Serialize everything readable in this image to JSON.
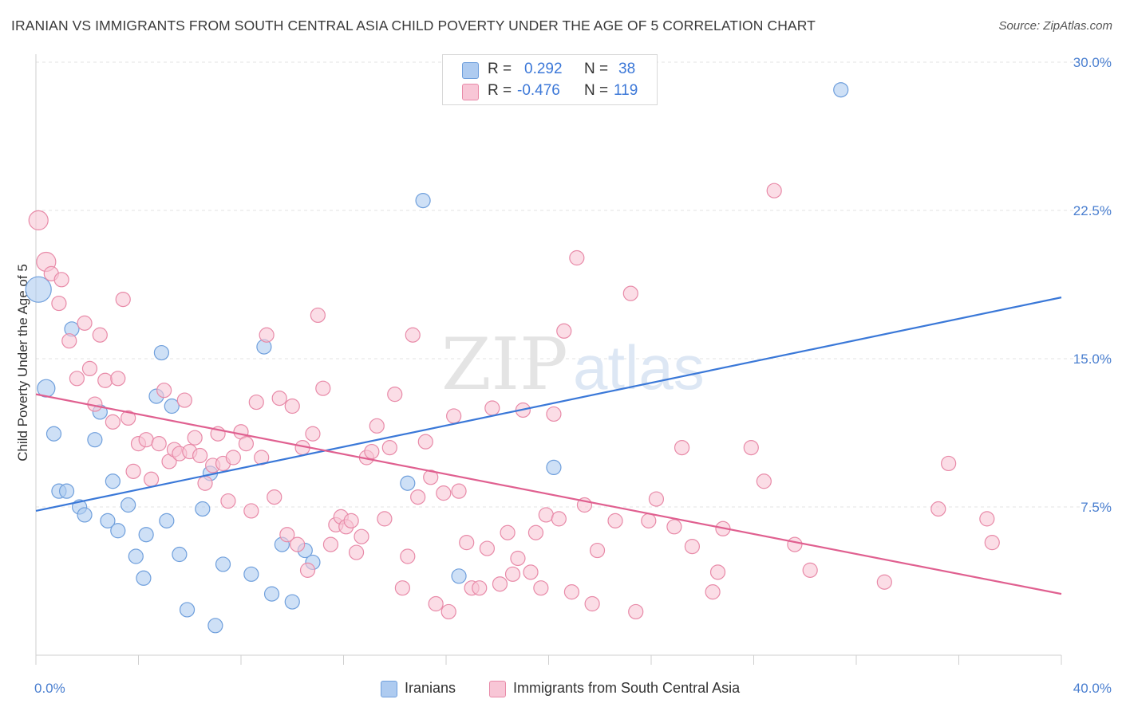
{
  "header": {
    "title": "IRANIAN VS IMMIGRANTS FROM SOUTH CENTRAL ASIA CHILD POVERTY UNDER THE AGE OF 5 CORRELATION CHART",
    "source": "Source: ZipAtlas.com"
  },
  "watermark": {
    "zip": "ZIP",
    "atlas": "atlas"
  },
  "legend": {
    "rows": [
      {
        "r_label": "R =",
        "r_value": "0.292",
        "n_label": "N =",
        "n_value": "38",
        "color": "#aecbf0",
        "border": "#6f9fdc"
      },
      {
        "r_label": "R =",
        "r_value": "-0.476",
        "n_label": "N =",
        "n_value": "119",
        "color": "#f8c6d6",
        "border": "#e88aa8"
      }
    ]
  },
  "bottom_legend": {
    "items": [
      {
        "label": "Iranians",
        "color": "#aecbf0",
        "border": "#6f9fdc"
      },
      {
        "label": "Immigrants from South Central Asia",
        "color": "#f8c6d6",
        "border": "#e88aa8"
      }
    ]
  },
  "chart_data": {
    "type": "scatter",
    "title": "IRANIAN VS IMMIGRANTS FROM SOUTH CENTRAL ASIA CHILD POVERTY UNDER THE AGE OF 5 CORRELATION CHART",
    "xlabel": "",
    "ylabel": "Child Poverty Under the Age of 5",
    "xlim": [
      0,
      40
    ],
    "ylim": [
      0,
      30
    ],
    "x_tick_labels": [
      "0.0%",
      "40.0%"
    ],
    "y_ticks": [
      7.5,
      15.0,
      22.5,
      30.0
    ],
    "y_tick_labels": [
      "7.5%",
      "15.0%",
      "22.5%",
      "30.0%"
    ],
    "grid": "horizontal-dashed",
    "legend_placement": "top-center",
    "series": [
      {
        "name": "Iranians",
        "color": "#6f9fdc",
        "fill": "#aecbf0",
        "trend": {
          "x": [
            0,
            40
          ],
          "y": [
            7.3,
            18.1
          ],
          "color": "#3a78d8"
        },
        "points": [
          [
            0.1,
            18.5,
            16
          ],
          [
            0.4,
            13.5,
            11
          ],
          [
            0.7,
            11.2,
            9
          ],
          [
            0.9,
            8.3,
            9
          ],
          [
            1.2,
            8.3,
            9
          ],
          [
            1.4,
            16.5,
            9
          ],
          [
            1.7,
            7.5,
            9
          ],
          [
            1.9,
            7.1,
            9
          ],
          [
            2.3,
            10.9,
            9
          ],
          [
            2.5,
            12.3,
            9
          ],
          [
            2.8,
            6.8,
            9
          ],
          [
            3.0,
            8.8,
            9
          ],
          [
            3.2,
            6.3,
            9
          ],
          [
            3.6,
            7.6,
            9
          ],
          [
            3.9,
            5.0,
            9
          ],
          [
            4.2,
            3.9,
            9
          ],
          [
            4.3,
            6.1,
            9
          ],
          [
            4.7,
            13.1,
            9
          ],
          [
            4.9,
            15.3,
            9
          ],
          [
            5.1,
            6.8,
            9
          ],
          [
            5.3,
            12.6,
            9
          ],
          [
            5.6,
            5.1,
            9
          ],
          [
            5.9,
            2.3,
            9
          ],
          [
            6.5,
            7.4,
            9
          ],
          [
            6.8,
            9.2,
            9
          ],
          [
            7.0,
            1.5,
            9
          ],
          [
            7.3,
            4.6,
            9
          ],
          [
            8.4,
            4.1,
            9
          ],
          [
            8.9,
            15.6,
            9
          ],
          [
            9.2,
            3.1,
            9
          ],
          [
            9.6,
            5.6,
            9
          ],
          [
            10.0,
            2.7,
            9
          ],
          [
            10.5,
            5.3,
            9
          ],
          [
            10.8,
            4.7,
            9
          ],
          [
            14.5,
            8.7,
            9
          ],
          [
            15.1,
            23.0,
            9
          ],
          [
            16.5,
            4.0,
            9
          ],
          [
            20.2,
            9.5,
            9
          ],
          [
            31.4,
            28.6,
            9
          ]
        ]
      },
      {
        "name": "Immigrants from South Central Asia",
        "color": "#e88aa8",
        "fill": "#f8c6d6",
        "trend": {
          "x": [
            0,
            40
          ],
          "y": [
            13.2,
            3.1
          ],
          "color": "#e06090"
        },
        "points": [
          [
            0.1,
            22.0,
            12
          ],
          [
            0.4,
            19.9,
            12
          ],
          [
            0.6,
            19.3,
            9
          ],
          [
            0.9,
            17.8,
            9
          ],
          [
            1.0,
            19.0,
            9
          ],
          [
            1.3,
            15.9,
            9
          ],
          [
            1.6,
            14.0,
            9
          ],
          [
            1.9,
            16.8,
            9
          ],
          [
            2.1,
            14.5,
            9
          ],
          [
            2.3,
            12.7,
            9
          ],
          [
            2.5,
            16.2,
            9
          ],
          [
            2.7,
            13.9,
            9
          ],
          [
            3.0,
            11.8,
            9
          ],
          [
            3.2,
            14.0,
            9
          ],
          [
            3.4,
            18.0,
            9
          ],
          [
            3.6,
            12.0,
            9
          ],
          [
            3.8,
            9.3,
            9
          ],
          [
            4.0,
            10.7,
            9
          ],
          [
            4.3,
            10.9,
            9
          ],
          [
            4.5,
            8.9,
            9
          ],
          [
            4.8,
            10.7,
            9
          ],
          [
            5.0,
            13.4,
            9
          ],
          [
            5.2,
            9.8,
            9
          ],
          [
            5.4,
            10.4,
            9
          ],
          [
            5.6,
            10.2,
            9
          ],
          [
            5.8,
            12.9,
            9
          ],
          [
            6.0,
            10.3,
            9
          ],
          [
            6.2,
            11.0,
            9
          ],
          [
            6.4,
            10.1,
            9
          ],
          [
            6.6,
            8.7,
            9
          ],
          [
            6.9,
            9.6,
            9
          ],
          [
            7.1,
            11.2,
            9
          ],
          [
            7.3,
            9.7,
            9
          ],
          [
            7.5,
            7.8,
            9
          ],
          [
            7.7,
            10.0,
            9
          ],
          [
            8.0,
            11.3,
            9
          ],
          [
            8.2,
            10.7,
            9
          ],
          [
            8.4,
            7.3,
            9
          ],
          [
            8.6,
            12.8,
            9
          ],
          [
            8.8,
            10.0,
            9
          ],
          [
            9.0,
            16.2,
            9
          ],
          [
            9.3,
            8.0,
            9
          ],
          [
            9.5,
            13.0,
            9
          ],
          [
            9.8,
            6.1,
            9
          ],
          [
            10.0,
            12.6,
            9
          ],
          [
            10.2,
            5.6,
            9
          ],
          [
            10.4,
            10.5,
            9
          ],
          [
            10.6,
            4.3,
            9
          ],
          [
            10.8,
            11.2,
            9
          ],
          [
            11.0,
            17.2,
            9
          ],
          [
            11.2,
            13.5,
            9
          ],
          [
            11.5,
            5.6,
            9
          ],
          [
            11.7,
            6.6,
            9
          ],
          [
            11.9,
            7.0,
            9
          ],
          [
            12.1,
            6.5,
            9
          ],
          [
            12.3,
            6.8,
            9
          ],
          [
            12.5,
            5.2,
            9
          ],
          [
            12.7,
            6.0,
            9
          ],
          [
            12.9,
            10.0,
            9
          ],
          [
            13.1,
            10.3,
            9
          ],
          [
            13.3,
            11.6,
            9
          ],
          [
            13.6,
            6.9,
            9
          ],
          [
            13.8,
            10.5,
            9
          ],
          [
            14.0,
            13.2,
            9
          ],
          [
            14.3,
            3.4,
            9
          ],
          [
            14.5,
            5.0,
            9
          ],
          [
            14.7,
            16.2,
            9
          ],
          [
            14.9,
            8.0,
            9
          ],
          [
            15.2,
            10.8,
            9
          ],
          [
            15.4,
            9.0,
            9
          ],
          [
            15.6,
            2.6,
            9
          ],
          [
            15.9,
            8.2,
            9
          ],
          [
            16.1,
            2.2,
            9
          ],
          [
            16.3,
            12.1,
            9
          ],
          [
            16.5,
            8.3,
            9
          ],
          [
            16.8,
            5.7,
            9
          ],
          [
            17.0,
            3.4,
            9
          ],
          [
            17.3,
            3.4,
            9
          ],
          [
            17.6,
            5.4,
            9
          ],
          [
            17.8,
            12.5,
            9
          ],
          [
            18.1,
            3.6,
            9
          ],
          [
            18.4,
            6.2,
            9
          ],
          [
            18.6,
            4.1,
            9
          ],
          [
            18.8,
            4.9,
            9
          ],
          [
            19.0,
            12.4,
            9
          ],
          [
            19.3,
            4.2,
            9
          ],
          [
            19.5,
            6.2,
            9
          ],
          [
            19.7,
            3.4,
            9
          ],
          [
            19.9,
            7.1,
            9
          ],
          [
            20.2,
            12.2,
            9
          ],
          [
            20.4,
            6.9,
            9
          ],
          [
            20.6,
            16.4,
            9
          ],
          [
            20.9,
            3.2,
            9
          ],
          [
            21.1,
            20.1,
            9
          ],
          [
            21.4,
            7.6,
            9
          ],
          [
            21.7,
            2.6,
            9
          ],
          [
            21.9,
            5.3,
            9
          ],
          [
            22.6,
            6.8,
            9
          ],
          [
            23.2,
            18.3,
            9
          ],
          [
            23.4,
            2.2,
            9
          ],
          [
            23.9,
            6.8,
            9
          ],
          [
            24.2,
            7.9,
            9
          ],
          [
            24.9,
            6.5,
            9
          ],
          [
            25.2,
            10.5,
            9
          ],
          [
            25.6,
            5.5,
            9
          ],
          [
            26.4,
            3.2,
            9
          ],
          [
            26.6,
            4.2,
            9
          ],
          [
            26.8,
            6.4,
            9
          ],
          [
            27.9,
            10.5,
            9
          ],
          [
            28.4,
            8.8,
            9
          ],
          [
            28.8,
            23.5,
            9
          ],
          [
            29.6,
            5.6,
            9
          ],
          [
            30.2,
            4.3,
            9
          ],
          [
            33.1,
            3.7,
            9
          ],
          [
            35.2,
            7.4,
            9
          ],
          [
            35.6,
            9.7,
            9
          ],
          [
            37.1,
            6.9,
            9
          ],
          [
            37.3,
            5.7,
            9
          ]
        ]
      }
    ]
  }
}
